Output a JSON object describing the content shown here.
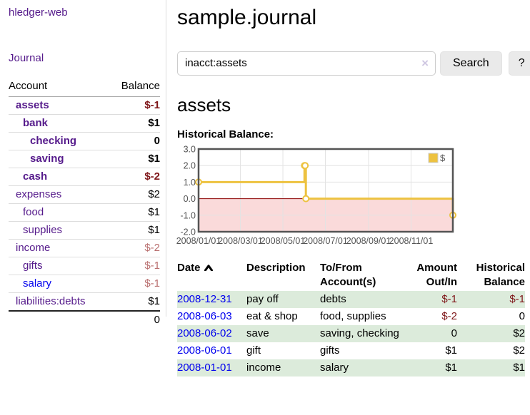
{
  "colors": {
    "link_visited_purple": "#551A8B",
    "link_blue": "#0000EE",
    "negative_strong": "#7e1518",
    "negative_soft": "#b96f6f",
    "row_shade_green": "#dcebdb",
    "series_yellow": "#EDC240",
    "chart_negative_fill": "#fadada",
    "chart_zero_line": "#8b0000",
    "chart_border": "#545454",
    "button_bg": "#eaeaea"
  },
  "sidebar": {
    "brand": "hledger-web",
    "journal_link": "Journal",
    "table": {
      "col_account": "Account",
      "col_balance": "Balance",
      "rows": [
        {
          "name": "assets",
          "indent": 1,
          "bold": true,
          "link": "visited",
          "balance": "$-1",
          "balance_style": "neg"
        },
        {
          "name": "bank",
          "indent": 2,
          "bold": true,
          "link": "visited",
          "balance": "$1",
          "balance_style": ""
        },
        {
          "name": "checking",
          "indent": 3,
          "bold": true,
          "link": "visited",
          "balance": "0",
          "balance_style": ""
        },
        {
          "name": "saving",
          "indent": 3,
          "bold": true,
          "link": "visited",
          "balance": "$1",
          "balance_style": ""
        },
        {
          "name": "cash",
          "indent": 2,
          "bold": true,
          "link": "visited",
          "balance": "$-2",
          "balance_style": "neg"
        },
        {
          "name": "expenses",
          "indent": 1,
          "bold": false,
          "link": "visited",
          "balance": "$2",
          "balance_style": ""
        },
        {
          "name": "food",
          "indent": 2,
          "bold": false,
          "link": "visited",
          "balance": "$1",
          "balance_style": ""
        },
        {
          "name": "supplies",
          "indent": 2,
          "bold": false,
          "link": "visited",
          "balance": "$1",
          "balance_style": ""
        },
        {
          "name": "income",
          "indent": 1,
          "bold": false,
          "link": "visited",
          "balance": "$-2",
          "balance_style": "neg-soft"
        },
        {
          "name": "gifts",
          "indent": 2,
          "bold": false,
          "link": "visited",
          "balance": "$-1",
          "balance_style": "neg-soft"
        },
        {
          "name": "salary",
          "indent": 2,
          "bold": false,
          "link": "unvisited",
          "balance": "$-1",
          "balance_style": "neg-soft"
        },
        {
          "name": "liabilities:debts",
          "indent": 1,
          "bold": false,
          "link": "visited",
          "balance": "$1",
          "balance_style": ""
        }
      ],
      "total": "0"
    }
  },
  "header": {
    "title": "sample.journal"
  },
  "search": {
    "value": "inacct:assets",
    "clear_icon": "×",
    "search_label": "Search",
    "help_label": "?"
  },
  "main": {
    "account_heading": "assets",
    "chart_label": "Historical Balance:",
    "table": {
      "headers": [
        "Date",
        "Description",
        "To/From Account(s)",
        "Amount Out/In",
        "Historical Balance"
      ],
      "sort_column": "Date",
      "sort_direction": "ascending",
      "rows": [
        {
          "date": "2008-12-31",
          "description": "pay off",
          "accounts": "debts",
          "amount": "$-1",
          "amount_negative": true,
          "balance": "$-1",
          "balance_negative": true,
          "shaded": true
        },
        {
          "date": "2008-06-03",
          "description": "eat & shop",
          "accounts": "food, supplies",
          "amount": "$-2",
          "amount_negative": true,
          "balance": "0",
          "balance_negative": false,
          "shaded": false
        },
        {
          "date": "2008-06-02",
          "description": "save",
          "accounts": "saving, checking",
          "amount": "0",
          "amount_negative": false,
          "balance": "$2",
          "balance_negative": false,
          "shaded": true
        },
        {
          "date": "2008-06-01",
          "description": "gift",
          "accounts": "gifts",
          "amount": "$1",
          "amount_negative": false,
          "balance": "$2",
          "balance_negative": false,
          "shaded": false
        },
        {
          "date": "2008-01-01",
          "description": "income",
          "accounts": "salary",
          "amount": "$1",
          "amount_negative": false,
          "balance": "$1",
          "balance_negative": false,
          "shaded": true
        }
      ]
    }
  },
  "chart_data": {
    "type": "line",
    "title": "Historical Balance",
    "series": [
      {
        "name": "$",
        "color": "#EDC240",
        "steps": true,
        "points": [
          [
            "2008-01-01",
            1.0
          ],
          [
            "2008-06-01",
            2.0
          ],
          [
            "2008-06-02",
            2.0
          ],
          [
            "2008-06-03",
            0.0
          ],
          [
            "2008-12-31",
            -1.0
          ]
        ]
      }
    ],
    "x_ticks": [
      "2008/01/01",
      "2008/03/01",
      "2008/05/01",
      "2008/07/01",
      "2008/09/01",
      "2008/11/01"
    ],
    "y_ticks": [
      3.0,
      2.0,
      1.0,
      0.0,
      -1.0,
      -2.0
    ],
    "ylim": [
      -2,
      3
    ],
    "xlim": [
      "2008-01-01",
      "2008-12-31"
    ],
    "legend": {
      "label": "$",
      "position": "top-right"
    },
    "grid": true,
    "negative_region_fill": "#fadada",
    "zero_line_color": "#8b0000"
  }
}
